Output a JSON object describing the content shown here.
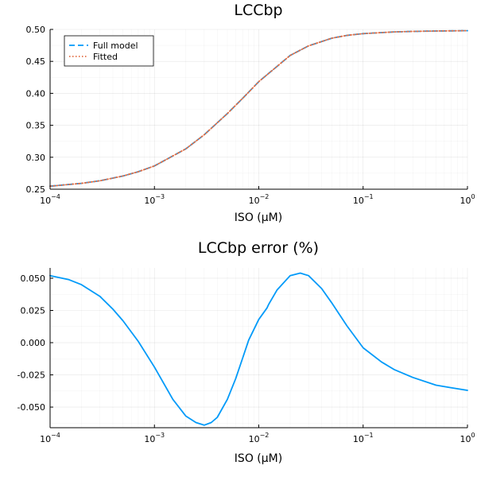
{
  "chart_data": [
    {
      "type": "line",
      "title": "LCCbp",
      "xlabel": "ISO (μM)",
      "ylabel": "",
      "xscale": "log",
      "xlim": [
        0.0001,
        1
      ],
      "ylim": [
        0.25,
        0.5
      ],
      "x_ticks": [
        {
          "base": "10",
          "exp": "−4"
        },
        {
          "base": "10",
          "exp": "−3"
        },
        {
          "base": "10",
          "exp": "−2"
        },
        {
          "base": "10",
          "exp": "−1"
        },
        {
          "base": "10",
          "exp": "0"
        }
      ],
      "y_ticks": [
        "0.25",
        "0.30",
        "0.35",
        "0.40",
        "0.45",
        "0.50"
      ],
      "grid": true,
      "legend_position": "top-left",
      "series": [
        {
          "name": "Full model",
          "style": "dashed",
          "color": "#009af9",
          "x": [
            0.0001,
            0.0002,
            0.0003,
            0.0005,
            0.0007,
            0.001,
            0.002,
            0.003,
            0.005,
            0.007,
            0.01,
            0.02,
            0.03,
            0.05,
            0.07,
            0.1,
            0.2,
            0.3,
            0.5,
            0.7,
            1
          ],
          "y": [
            0.2547,
            0.2592,
            0.2632,
            0.2707,
            0.2774,
            0.2864,
            0.3132,
            0.3352,
            0.3684,
            0.3922,
            0.4183,
            0.4593,
            0.4743,
            0.4862,
            0.4907,
            0.4934,
            0.4961,
            0.4969,
            0.4975,
            0.4978,
            0.498
          ]
        },
        {
          "name": "Fitted",
          "style": "dotted",
          "color": "#e26f46",
          "x": [
            0.0001,
            0.0002,
            0.0003,
            0.0005,
            0.0007,
            0.001,
            0.002,
            0.003,
            0.005,
            0.007,
            0.01,
            0.02,
            0.03,
            0.05,
            0.07,
            0.1,
            0.2,
            0.3,
            0.5,
            0.7,
            1
          ],
          "y": [
            0.2547,
            0.2592,
            0.2632,
            0.2707,
            0.2774,
            0.2864,
            0.3132,
            0.3352,
            0.3684,
            0.3922,
            0.4183,
            0.4593,
            0.4743,
            0.4862,
            0.4907,
            0.4934,
            0.4961,
            0.4969,
            0.4975,
            0.4978,
            0.498
          ]
        }
      ]
    },
    {
      "type": "line",
      "title": "LCCbp error (%)",
      "xlabel": "ISO (μM)",
      "ylabel": "",
      "xscale": "log",
      "xlim": [
        0.0001,
        1
      ],
      "ylim": [
        -0.066,
        0.058
      ],
      "x_ticks": [
        {
          "base": "10",
          "exp": "−4"
        },
        {
          "base": "10",
          "exp": "−3"
        },
        {
          "base": "10",
          "exp": "−2"
        },
        {
          "base": "10",
          "exp": "−1"
        },
        {
          "base": "10",
          "exp": "0"
        }
      ],
      "y_ticks": [
        "-0.050",
        "-0.025",
        "0.000",
        "0.025",
        "0.050"
      ],
      "grid": true,
      "legend_position": "none",
      "series": [
        {
          "style": "solid",
          "color": "#009af9",
          "x": [
            0.0001,
            0.00015,
            0.0002,
            0.0003,
            0.0004,
            0.0005,
            0.0007,
            0.001,
            0.0015,
            0.002,
            0.0025,
            0.003,
            0.0035,
            0.004,
            0.005,
            0.006,
            0.007,
            0.008,
            0.01,
            0.012,
            0.0125,
            0.015,
            0.02,
            0.025,
            0.03,
            0.04,
            0.05,
            0.07,
            0.1,
            0.15,
            0.2,
            0.3,
            0.5,
            0.7,
            1
          ],
          "y": [
            0.052,
            0.049,
            0.045,
            0.036,
            0.026,
            0.017,
            0.001,
            -0.019,
            -0.044,
            -0.057,
            -0.062,
            -0.064,
            -0.062,
            -0.058,
            -0.044,
            -0.028,
            -0.012,
            0.002,
            0.018,
            0.027,
            0.03,
            0.041,
            0.052,
            0.054,
            0.052,
            0.042,
            0.031,
            0.013,
            -0.004,
            -0.015,
            -0.021,
            -0.027,
            -0.033,
            -0.035,
            -0.037
          ]
        }
      ]
    }
  ]
}
